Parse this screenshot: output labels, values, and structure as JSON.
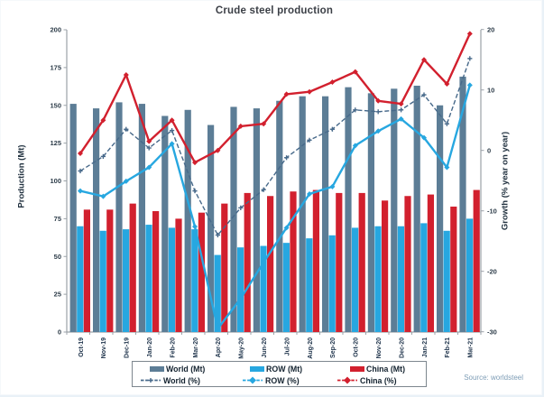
{
  "chart_data": {
    "type": "combo-bar-line",
    "title": "Crude steel production",
    "source_note": "Source: worldsteel",
    "categories": [
      "Oct-19",
      "Nov-19",
      "Dec-19",
      "Jan-20",
      "Feb-20",
      "Mar-20",
      "Apr-20",
      "May-20",
      "Jun-20",
      "Jul-20",
      "Aug-20",
      "Sep-20",
      "Oct-20",
      "Nov-20",
      "Dec-20",
      "Jan-21",
      "Feb-21",
      "Mar-21"
    ],
    "left_axis": {
      "label": "Production (Mt)",
      "min": 0,
      "max": 200,
      "ticks": [
        200,
        175,
        150,
        125,
        100,
        75,
        50,
        25,
        0
      ]
    },
    "right_axis": {
      "label": "Growth (% year on year)",
      "min": -30,
      "max": 20,
      "ticks": [
        20,
        10,
        0,
        -10,
        -20,
        -30
      ]
    },
    "grid": false,
    "legend_position": "bottom-center",
    "bar_series": [
      {
        "name": "World (Mt)",
        "color": "#5c7d96",
        "axis": "left",
        "values": [
          151,
          148,
          152,
          151,
          143,
          147,
          137,
          149,
          148,
          153,
          156,
          156,
          162,
          158,
          161,
          163,
          150,
          169
        ]
      },
      {
        "name": "ROW (Mt)",
        "color": "#27a7e0",
        "axis": "left",
        "values": [
          70,
          67,
          68,
          71,
          69,
          68,
          51,
          56,
          57,
          59,
          62,
          64,
          69,
          70,
          70,
          72,
          67,
          75
        ]
      },
      {
        "name": "China (Mt)",
        "color": "#d2202e",
        "axis": "left",
        "values": [
          81,
          81,
          85,
          80,
          75,
          79,
          85,
          92,
          90,
          93,
          94,
          92,
          92,
          87,
          90,
          91,
          83,
          94
        ]
      }
    ],
    "line_series": [
      {
        "name": "World (%)",
        "color": "#47698a",
        "style": "dashed",
        "marker": "plus",
        "axis": "right",
        "values": [
          -3.4,
          -1.0,
          3.5,
          0.4,
          3.3,
          -6.7,
          -14.0,
          -9.5,
          -6.5,
          -1.2,
          1.7,
          3.5,
          6.7,
          6.4,
          6.7,
          9.2,
          4.4,
          15.2
        ]
      },
      {
        "name": "ROW (%)",
        "color": "#27a7e0",
        "style": "solid",
        "marker": "diamond",
        "axis": "right",
        "values": [
          -6.7,
          -7.6,
          -5.1,
          -2.8,
          1.1,
          -12.6,
          -29.5,
          -24.5,
          -18.5,
          -12.8,
          -7.2,
          -6.0,
          0.8,
          3.2,
          5.2,
          2.1,
          -2.8,
          10.8
        ]
      },
      {
        "name": "China (%)",
        "color": "#d2202e",
        "style": "solid",
        "marker": "diamond",
        "axis": "right",
        "values": [
          -0.5,
          5.0,
          12.5,
          1.5,
          5.0,
          -2.0,
          0.0,
          4.0,
          4.4,
          9.3,
          9.7,
          11.3,
          13.0,
          8.2,
          7.7,
          15.0,
          11.0,
          19.3
        ]
      }
    ],
    "style": {
      "axis_line_color": "#9ba2a8",
      "tick_text_color": "#2d3c49",
      "month_text_color": "#1c3149"
    }
  }
}
